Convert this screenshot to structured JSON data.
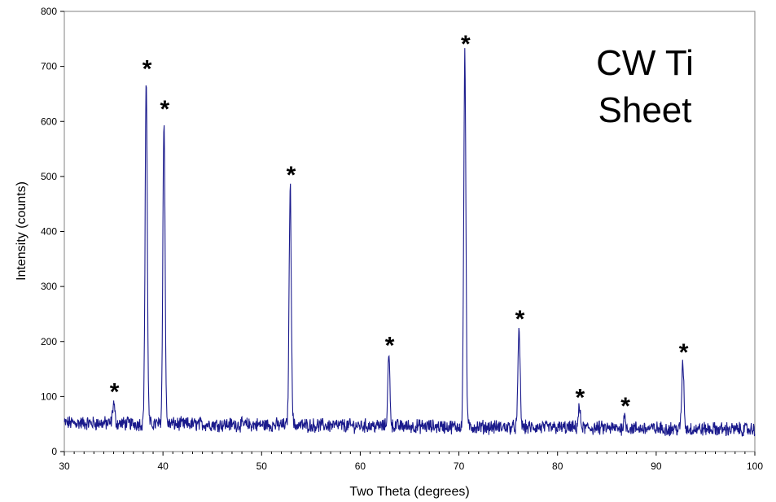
{
  "chart_data": {
    "type": "line",
    "title": "",
    "xlabel": "Two Theta (degrees)",
    "ylabel": "Intensity (counts)",
    "xlim": [
      30,
      100
    ],
    "ylim": [
      0,
      800
    ],
    "x_ticks": [
      30,
      40,
      50,
      60,
      70,
      80,
      90,
      100
    ],
    "y_ticks": [
      0,
      100,
      200,
      300,
      400,
      500,
      600,
      700,
      800
    ],
    "grid": false,
    "line_color": "#1a1a8c",
    "annotation": [
      "CW Ti",
      "Sheet"
    ],
    "peak_marker": "*",
    "peaks": [
      {
        "x": 35.0,
        "y": 88
      },
      {
        "x": 38.3,
        "y": 675
      },
      {
        "x": 40.1,
        "y": 602
      },
      {
        "x": 52.9,
        "y": 482
      },
      {
        "x": 62.9,
        "y": 172
      },
      {
        "x": 70.6,
        "y": 720
      },
      {
        "x": 76.1,
        "y": 220
      },
      {
        "x": 82.2,
        "y": 78
      },
      {
        "x": 86.8,
        "y": 62
      },
      {
        "x": 92.7,
        "y": 160
      }
    ],
    "baseline": {
      "start": 52,
      "end": 40
    }
  }
}
